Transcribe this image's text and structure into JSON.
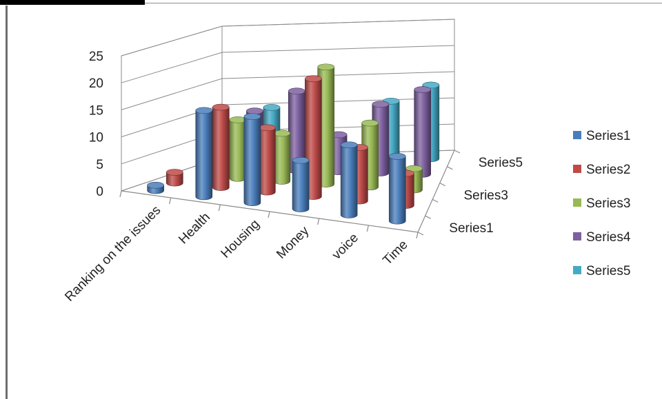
{
  "chart_data": {
    "type": "bar",
    "subtype": "3d-cylinder",
    "title": "",
    "xlabel": "",
    "ylabel": "",
    "ylim": [
      0,
      25
    ],
    "yticks": [
      0,
      5,
      10,
      15,
      20,
      25
    ],
    "grid": true,
    "legend_position": "right",
    "categories": [
      "Ranking on the issues",
      "Health",
      "Housing",
      "Money",
      "voice",
      "Time"
    ],
    "depth_labels": [
      "Series1",
      "Series3",
      "Series5"
    ],
    "series": [
      {
        "name": "Series1",
        "color": "#4a7ebb",
        "values": [
          1,
          16,
          16,
          9,
          13,
          12
        ]
      },
      {
        "name": "Series2",
        "color": "#be4b48",
        "values": [
          2,
          15,
          12,
          22,
          10,
          6
        ]
      },
      {
        "name": "Series3",
        "color": "#98b954",
        "values": [
          0,
          11,
          9,
          22,
          12,
          4
        ]
      },
      {
        "name": "Series4",
        "color": "#7d60a0",
        "values": [
          0,
          11,
          15,
          7,
          13,
          16
        ]
      },
      {
        "name": "Series5",
        "color": "#46aac5",
        "values": [
          0,
          10,
          0,
          0,
          11,
          14
        ]
      }
    ]
  }
}
